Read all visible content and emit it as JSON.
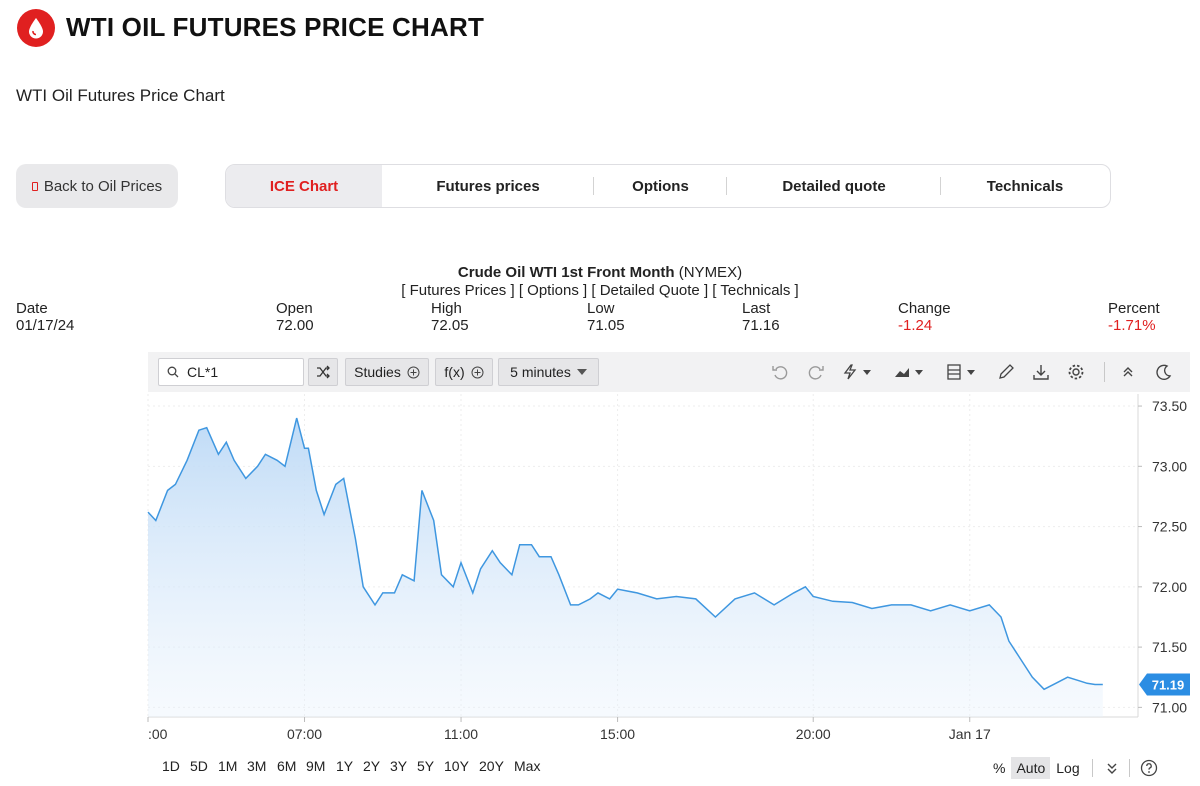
{
  "header": {
    "title": "WTI OIL FUTURES PRICE CHART",
    "subtitle": "WTI Oil Futures Price Chart",
    "logo_icon": "oil-drop-icon"
  },
  "back_button": {
    "label": "Back to Oil Prices"
  },
  "tabs": [
    {
      "label": "ICE Chart",
      "active": true
    },
    {
      "label": "Futures prices",
      "active": false
    },
    {
      "label": "Options",
      "active": false
    },
    {
      "label": "Detailed quote",
      "active": false
    },
    {
      "label": "Technicals",
      "active": false
    }
  ],
  "instrument": {
    "name": "Crude Oil WTI 1st Front Month",
    "exchange": "(NYMEX)",
    "links": [
      "[ Futures Prices ]",
      "[ Options ]",
      "[ Detailed Quote ]",
      "[ Technicals ]"
    ]
  },
  "quote": {
    "date_label": "Date",
    "date": "01/17/24",
    "open_label": "Open",
    "open": "72.00",
    "high_label": "High",
    "high": "72.05",
    "low_label": "Low",
    "low": "71.05",
    "last_label": "Last",
    "last": "71.16",
    "change_label": "Change",
    "change": "-1.24",
    "percent_label": "Percent",
    "percent": "-1.71%"
  },
  "toolbar": {
    "symbol": "CL*1",
    "studies_label": "Studies",
    "fx_label": "f(x)",
    "interval": "5 minutes"
  },
  "ranges": [
    "1D",
    "5D",
    "1M",
    "3M",
    "6M",
    "9M",
    "1Y",
    "2Y",
    "3Y",
    "5Y",
    "10Y",
    "20Y",
    "Max"
  ],
  "scale_options": {
    "percent": "%",
    "auto": "Auto",
    "log": "Log"
  },
  "colors": {
    "accent": "#e02020",
    "line": "#3f97e0",
    "last_badge": "#2b8de3"
  },
  "chart_data": {
    "type": "area",
    "x_ticks": [
      ":00",
      "07:00",
      "11:00",
      "15:00",
      "20:00",
      "Jan 17"
    ],
    "y_ticks": [
      "73.50",
      "73.00",
      "72.50",
      "72.00",
      "71.50",
      "71.00"
    ],
    "ylim": [
      70.92,
      73.6
    ],
    "last_value": "71.19",
    "grid": true,
    "x": [
      3.0,
      3.2,
      3.5,
      3.7,
      4.0,
      4.3,
      4.5,
      4.8,
      5.0,
      5.2,
      5.5,
      5.8,
      6.0,
      6.3,
      6.5,
      6.8,
      7.0,
      7.1,
      7.3,
      7.5,
      7.8,
      8.0,
      8.3,
      8.5,
      8.8,
      9.0,
      9.3,
      9.5,
      9.8,
      10.0,
      10.3,
      10.5,
      10.8,
      11.0,
      11.3,
      11.5,
      11.8,
      12.0,
      12.3,
      12.5,
      12.8,
      13.0,
      13.3,
      13.5,
      13.8,
      14.0,
      14.3,
      14.5,
      14.8,
      15.0,
      15.5,
      16.0,
      16.5,
      17.0,
      17.5,
      18.0,
      18.5,
      19.0,
      19.5,
      19.8,
      20.0,
      20.5,
      21.0,
      21.5,
      22.0,
      22.5,
      23.0,
      23.5,
      24.0,
      24.5,
      24.8,
      25.0,
      25.3,
      25.6,
      25.9,
      26.2,
      26.5,
      26.8,
      27.0,
      27.2,
      27.4
    ],
    "y": [
      72.62,
      72.55,
      72.8,
      72.85,
      73.05,
      73.3,
      73.32,
      73.1,
      73.2,
      73.05,
      72.9,
      73.0,
      73.1,
      73.05,
      73.0,
      73.4,
      73.15,
      73.15,
      72.8,
      72.6,
      72.85,
      72.9,
      72.4,
      72.0,
      71.85,
      71.95,
      71.95,
      72.1,
      72.05,
      72.8,
      72.55,
      72.1,
      72.0,
      72.2,
      71.95,
      72.15,
      72.3,
      72.2,
      72.1,
      72.35,
      72.35,
      72.25,
      72.25,
      72.1,
      71.85,
      71.85,
      71.9,
      71.95,
      71.9,
      71.98,
      71.95,
      71.9,
      71.92,
      71.9,
      71.75,
      71.9,
      71.95,
      71.85,
      71.95,
      72.0,
      71.92,
      71.88,
      71.87,
      71.82,
      71.85,
      71.85,
      71.8,
      71.85,
      71.8,
      71.85,
      71.75,
      71.55,
      71.4,
      71.25,
      71.15,
      71.2,
      71.25,
      71.22,
      71.2,
      71.19,
      71.19
    ]
  }
}
